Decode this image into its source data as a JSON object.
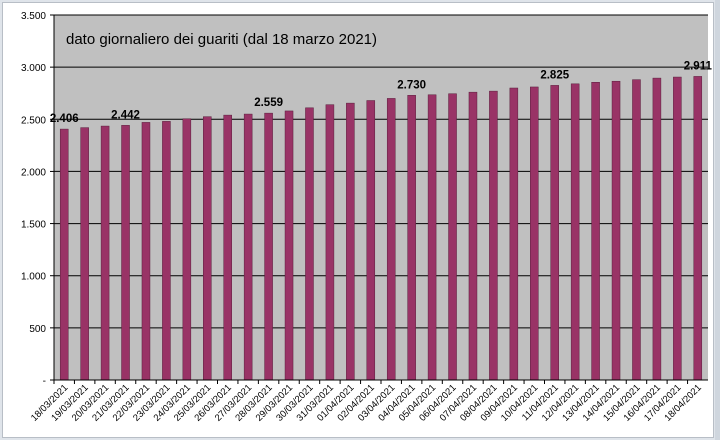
{
  "chart_data": {
    "type": "bar",
    "title": "dato giornaliero dei guariti (dal 18 marzo 2021)",
    "xlabel": "",
    "ylabel": "",
    "ylim": [
      0,
      3500
    ],
    "yticks": [
      {
        "value": 0,
        "label": "-"
      },
      {
        "value": 500,
        "label": "500"
      },
      {
        "value": 1000,
        "label": "1.000"
      },
      {
        "value": 1500,
        "label": "1.500"
      },
      {
        "value": 2000,
        "label": "2.000"
      },
      {
        "value": 2500,
        "label": "2.500"
      },
      {
        "value": 3000,
        "label": "3.000"
      },
      {
        "value": 3500,
        "label": "3.500"
      }
    ],
    "grid": true,
    "colors": {
      "bar": "#993366",
      "plot_area": "#c0c0c0",
      "gridline": "#000000"
    },
    "categories": [
      "18/03/2021",
      "19/03/2021",
      "20/03/2021",
      "21/03/2021",
      "22/03/2021",
      "23/03/2021",
      "24/03/2021",
      "25/03/2021",
      "26/03/2021",
      "27/03/2021",
      "28/03/2021",
      "29/03/2021",
      "30/03/2021",
      "31/03/2021",
      "01/04/2021",
      "02/04/2021",
      "03/04/2021",
      "04/04/2021",
      "05/04/2021",
      "06/04/2021",
      "07/04/2021",
      "08/04/2021",
      "09/04/2021",
      "10/04/2021",
      "11/04/2021",
      "12/04/2021",
      "13/04/2021",
      "14/04/2021",
      "15/04/2021",
      "16/04/2021",
      "17/04/2021",
      "18/04/2021"
    ],
    "values": [
      2406,
      2420,
      2435,
      2442,
      2470,
      2480,
      2505,
      2525,
      2540,
      2550,
      2559,
      2580,
      2610,
      2640,
      2655,
      2680,
      2700,
      2730,
      2735,
      2745,
      2760,
      2770,
      2800,
      2810,
      2825,
      2840,
      2855,
      2865,
      2880,
      2895,
      2905,
      2911
    ],
    "data_labels": [
      {
        "index": 0,
        "text": "2.406"
      },
      {
        "index": 3,
        "text": "2.442"
      },
      {
        "index": 10,
        "text": "2.559"
      },
      {
        "index": 17,
        "text": "2.730"
      },
      {
        "index": 24,
        "text": "2.825"
      },
      {
        "index": 31,
        "text": "2.911"
      }
    ]
  }
}
